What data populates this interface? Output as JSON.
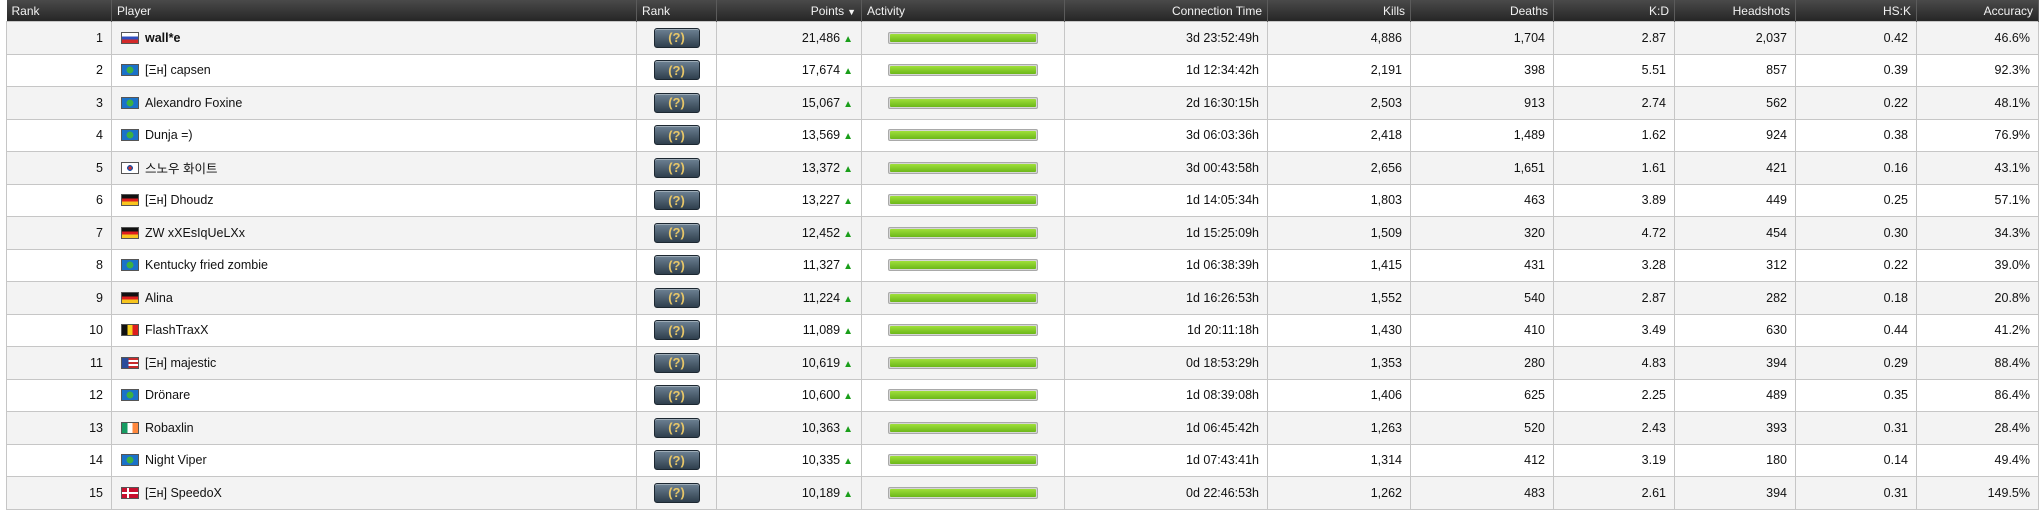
{
  "table": {
    "headers": {
      "rank": "Rank",
      "player": "Player",
      "rank_badge": "Rank",
      "points": "Points",
      "activity": "Activity",
      "connection_time": "Connection Time",
      "kills": "Kills",
      "deaths": "Deaths",
      "kd": "K:D",
      "headshots": "Headshots",
      "hsk": "HS:K",
      "accuracy": "Accuracy"
    },
    "sort_icon": "sort-desc-icon",
    "trend_icon": "trend-up-arrow-icon",
    "rank_badge_glyph": "(?)",
    "rows": [
      {
        "rank": "1",
        "flag": "ru",
        "player": "wall*e",
        "bold": true,
        "points": "21,486",
        "activity": 1.0,
        "connection_time": "3d 23:52:49h",
        "kills": "4,886",
        "deaths": "1,704",
        "kd": "2.87",
        "headshots": "2,037",
        "hsk": "0.42",
        "accuracy": "46.6%"
      },
      {
        "rank": "2",
        "flag": "world",
        "player": "[Ξн] capsen",
        "bold": false,
        "points": "17,674",
        "activity": 1.0,
        "connection_time": "1d 12:34:42h",
        "kills": "2,191",
        "deaths": "398",
        "kd": "5.51",
        "headshots": "857",
        "hsk": "0.39",
        "accuracy": "92.3%"
      },
      {
        "rank": "3",
        "flag": "world",
        "player": "Alexandro Foxine",
        "bold": false,
        "points": "15,067",
        "activity": 1.0,
        "connection_time": "2d 16:30:15h",
        "kills": "2,503",
        "deaths": "913",
        "kd": "2.74",
        "headshots": "562",
        "hsk": "0.22",
        "accuracy": "48.1%"
      },
      {
        "rank": "4",
        "flag": "world",
        "player": "Dunja =)",
        "bold": false,
        "points": "13,569",
        "activity": 1.0,
        "connection_time": "3d 06:03:36h",
        "kills": "2,418",
        "deaths": "1,489",
        "kd": "1.62",
        "headshots": "924",
        "hsk": "0.38",
        "accuracy": "76.9%"
      },
      {
        "rank": "5",
        "flag": "kr",
        "player": "스노우 화이트",
        "bold": false,
        "points": "13,372",
        "activity": 1.0,
        "connection_time": "3d 00:43:58h",
        "kills": "2,656",
        "deaths": "1,651",
        "kd": "1.61",
        "headshots": "421",
        "hsk": "0.16",
        "accuracy": "43.1%"
      },
      {
        "rank": "6",
        "flag": "de",
        "player": "[Ξн] Dhoudz",
        "bold": false,
        "points": "13,227",
        "activity": 1.0,
        "connection_time": "1d 14:05:34h",
        "kills": "1,803",
        "deaths": "463",
        "kd": "3.89",
        "headshots": "449",
        "hsk": "0.25",
        "accuracy": "57.1%"
      },
      {
        "rank": "7",
        "flag": "de",
        "player": "ZW xXEsIqUeLXx",
        "bold": false,
        "points": "12,452",
        "activity": 1.0,
        "connection_time": "1d 15:25:09h",
        "kills": "1,509",
        "deaths": "320",
        "kd": "4.72",
        "headshots": "454",
        "hsk": "0.30",
        "accuracy": "34.3%"
      },
      {
        "rank": "8",
        "flag": "world",
        "player": "Kentucky fried zombie",
        "bold": false,
        "points": "11,327",
        "activity": 1.0,
        "connection_time": "1d 06:38:39h",
        "kills": "1,415",
        "deaths": "431",
        "kd": "3.28",
        "headshots": "312",
        "hsk": "0.22",
        "accuracy": "39.0%"
      },
      {
        "rank": "9",
        "flag": "de",
        "player": "Alina",
        "bold": false,
        "points": "11,224",
        "activity": 1.0,
        "connection_time": "1d 16:26:53h",
        "kills": "1,552",
        "deaths": "540",
        "kd": "2.87",
        "headshots": "282",
        "hsk": "0.18",
        "accuracy": "20.8%"
      },
      {
        "rank": "10",
        "flag": "be",
        "player": "FlashTraxX",
        "bold": false,
        "points": "11,089",
        "activity": 1.0,
        "connection_time": "1d 20:11:18h",
        "kills": "1,430",
        "deaths": "410",
        "kd": "3.49",
        "headshots": "630",
        "hsk": "0.44",
        "accuracy": "41.2%"
      },
      {
        "rank": "11",
        "flag": "us",
        "player": "[Ξн] majestic",
        "bold": false,
        "points": "10,619",
        "activity": 1.0,
        "connection_time": "0d 18:53:29h",
        "kills": "1,353",
        "deaths": "280",
        "kd": "4.83",
        "headshots": "394",
        "hsk": "0.29",
        "accuracy": "88.4%"
      },
      {
        "rank": "12",
        "flag": "world",
        "player": "Drönare",
        "bold": false,
        "points": "10,600",
        "activity": 1.0,
        "connection_time": "1d 08:39:08h",
        "kills": "1,406",
        "deaths": "625",
        "kd": "2.25",
        "headshots": "489",
        "hsk": "0.35",
        "accuracy": "86.4%"
      },
      {
        "rank": "13",
        "flag": "ie",
        "player": "Robaxlin",
        "bold": false,
        "points": "10,363",
        "activity": 1.0,
        "connection_time": "1d 06:45:42h",
        "kills": "1,263",
        "deaths": "520",
        "kd": "2.43",
        "headshots": "393",
        "hsk": "0.31",
        "accuracy": "28.4%"
      },
      {
        "rank": "14",
        "flag": "world",
        "player": "Night Viper",
        "bold": false,
        "points": "10,335",
        "activity": 1.0,
        "connection_time": "1d 07:43:41h",
        "kills": "1,314",
        "deaths": "412",
        "kd": "3.19",
        "headshots": "180",
        "hsk": "0.14",
        "accuracy": "49.4%"
      },
      {
        "rank": "15",
        "flag": "dk",
        "player": "[Ξн] SpeedoX",
        "bold": false,
        "points": "10,189",
        "activity": 1.0,
        "connection_time": "0d 22:46:53h",
        "kills": "1,262",
        "deaths": "483",
        "kd": "2.61",
        "headshots": "394",
        "hsk": "0.31",
        "accuracy": "149.5%"
      }
    ]
  },
  "colors": {
    "header_bg": "#333333",
    "row_alt": "#f3f3f3",
    "activity_fill": "#7cc51f",
    "trend_up": "#1a9e1a"
  }
}
